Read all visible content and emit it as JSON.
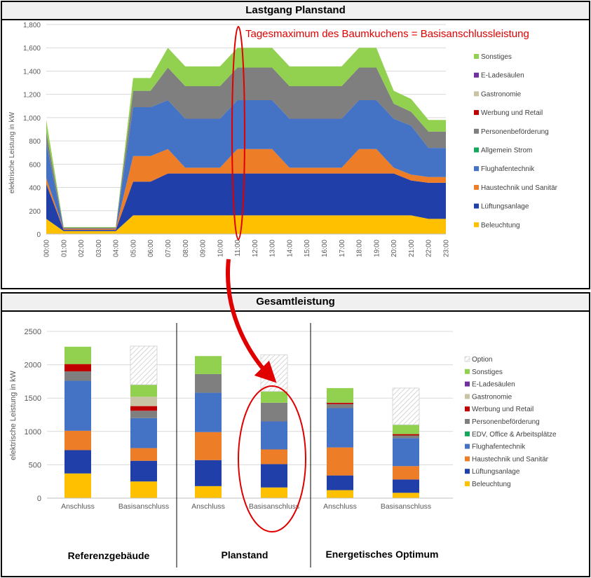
{
  "colors": {
    "Beleuchtung": "#ffc000",
    "Lueftung": "#203fa8",
    "Haustechnik": "#ee7d27",
    "Flughafen": "#4472c4",
    "Allgemein": "#13a85c",
    "EDV": "#13a85c",
    "Personen": "#7f7f7f",
    "Werbung": "#c00000",
    "Gastronomie": "#c8c3a4",
    "ELade": "#7030a0",
    "Sonstiges": "#92d050",
    "Option": "#cccccc",
    "annotation": "#e00000"
  },
  "top_panel": {
    "title": "Lastgang Planstand",
    "annotation": "Tagesmaximum des Baumkuchens = Basisanschlussleistung"
  },
  "bottom_panel": {
    "title": "Gesamtleistung",
    "group_labels": [
      "Referenzgebäude",
      "Planstand",
      "Energetisches Optimum"
    ]
  },
  "chart_data": [
    {
      "type": "area",
      "title": "Lastgang Planstand",
      "ylabel": "elektrische Leistung in kW",
      "ylim": [
        0,
        1800
      ],
      "yticks": [
        "0",
        "200",
        "400",
        "600",
        "800",
        "1,000",
        "1,200",
        "1,400",
        "1,600",
        "1,800"
      ],
      "x": [
        "00:00",
        "01:00",
        "02:00",
        "03:00",
        "04:00",
        "05:00",
        "06:00",
        "07:00",
        "08:00",
        "09:00",
        "10:00",
        "11:00",
        "12:00",
        "13:00",
        "14:00",
        "15:00",
        "16:00",
        "17:00",
        "18:00",
        "19:00",
        "20:00",
        "21:00",
        "22:00",
        "23:00"
      ],
      "legend_order": [
        "Sonstiges",
        "E-Ladesäulen",
        "Gastronomie",
        "Werbung und Retail",
        "Personenbeförderung",
        "Allgemein Strom",
        "Flughafentechnik",
        "Haustechnik und Sanitär",
        "Lüftungsanlage",
        "Beleuchtung"
      ],
      "series": [
        {
          "name": "Beleuchtung",
          "color_key": "Beleuchtung",
          "values": [
            130,
            25,
            25,
            25,
            25,
            160,
            160,
            160,
            160,
            160,
            160,
            160,
            160,
            160,
            160,
            160,
            160,
            160,
            160,
            160,
            160,
            160,
            130,
            130
          ]
        },
        {
          "name": "Lüftungsanlage",
          "color_key": "Lueftung",
          "values": [
            300,
            10,
            10,
            10,
            10,
            290,
            290,
            360,
            360,
            360,
            360,
            360,
            360,
            360,
            360,
            360,
            360,
            360,
            360,
            360,
            360,
            300,
            310,
            310
          ]
        },
        {
          "name": "Haustechnik und Sanitär",
          "color_key": "Haustechnik",
          "values": [
            50,
            10,
            10,
            10,
            10,
            220,
            220,
            210,
            50,
            50,
            50,
            210,
            210,
            210,
            50,
            50,
            50,
            50,
            210,
            210,
            50,
            50,
            50,
            50
          ]
        },
        {
          "name": "Flughafentechnik",
          "color_key": "Flughafen",
          "values": [
            300,
            5,
            5,
            5,
            5,
            420,
            420,
            420,
            420,
            420,
            420,
            420,
            420,
            420,
            420,
            420,
            420,
            420,
            420,
            420,
            420,
            420,
            250,
            250
          ]
        },
        {
          "name": "Allgemein Strom",
          "color_key": "Allgemein",
          "values": [
            0,
            0,
            0,
            0,
            0,
            0,
            0,
            0,
            0,
            0,
            0,
            0,
            0,
            0,
            0,
            0,
            0,
            0,
            0,
            0,
            0,
            0,
            0,
            0
          ]
        },
        {
          "name": "Personenbeförderung",
          "color_key": "Personen",
          "values": [
            100,
            5,
            5,
            5,
            5,
            140,
            140,
            280,
            280,
            280,
            280,
            280,
            280,
            280,
            280,
            280,
            280,
            280,
            280,
            280,
            130,
            120,
            140,
            140
          ]
        },
        {
          "name": "Werbung und Retail",
          "color_key": "Werbung",
          "values": [
            0,
            0,
            0,
            0,
            0,
            0,
            0,
            0,
            0,
            0,
            0,
            0,
            0,
            0,
            0,
            0,
            0,
            0,
            0,
            0,
            0,
            0,
            0,
            0
          ]
        },
        {
          "name": "Gastronomie",
          "color_key": "Gastronomie",
          "values": [
            0,
            0,
            0,
            0,
            0,
            0,
            0,
            0,
            0,
            0,
            0,
            0,
            0,
            0,
            0,
            0,
            0,
            0,
            0,
            0,
            0,
            0,
            0,
            0
          ]
        },
        {
          "name": "E-Ladesäulen",
          "color_key": "ELade",
          "values": [
            0,
            0,
            0,
            0,
            0,
            0,
            0,
            0,
            0,
            0,
            0,
            0,
            0,
            0,
            0,
            0,
            0,
            0,
            0,
            0,
            0,
            0,
            0,
            0
          ]
        },
        {
          "name": "Sonstiges",
          "color_key": "Sonstiges",
          "values": [
            100,
            5,
            5,
            5,
            5,
            110,
            110,
            170,
            170,
            170,
            170,
            170,
            170,
            170,
            170,
            170,
            170,
            170,
            170,
            170,
            110,
            110,
            100,
            100
          ]
        }
      ]
    },
    {
      "type": "bar",
      "title": "Gesamtleistung",
      "ylabel": "elektrische Leistung in kW",
      "ylim": [
        0,
        2500
      ],
      "yticks": [
        "0",
        "500",
        "1000",
        "1500",
        "2000",
        "2500"
      ],
      "categories": [
        "Anschluss",
        "Basisanschluss",
        "Anschluss",
        "Basisanschluss",
        "Anschluss",
        "Basisanschluss"
      ],
      "legend_order": [
        "Option",
        "Sonstiges",
        "E-Ladesäulen",
        "Gastronomie",
        "Werbung und Retail",
        "Personenbeförderung",
        "EDV, Office & Arbeitsplätze",
        "Flughafentechnik",
        "Haustechnik und Sanitär",
        "Lüftungsanlage",
        "Beleuchtung"
      ],
      "series": [
        {
          "name": "Beleuchtung",
          "color_key": "Beleuchtung",
          "values": [
            370,
            250,
            180,
            160,
            120,
            80
          ]
        },
        {
          "name": "Lüftungsanlage",
          "color_key": "Lueftung",
          "values": [
            350,
            310,
            390,
            350,
            220,
            200
          ]
        },
        {
          "name": "Haustechnik und Sanitär",
          "color_key": "Haustechnik",
          "values": [
            290,
            190,
            420,
            220,
            420,
            200
          ]
        },
        {
          "name": "Flughafentechnik",
          "color_key": "Flughafen",
          "values": [
            750,
            450,
            590,
            420,
            590,
            420
          ]
        },
        {
          "name": "EDV, Office & Arbeitsplätze",
          "color_key": "EDV",
          "values": [
            0,
            0,
            0,
            0,
            0,
            0
          ]
        },
        {
          "name": "Personenbeförderung",
          "color_key": "Personen",
          "values": [
            140,
            110,
            280,
            280,
            60,
            40
          ]
        },
        {
          "name": "Werbung und Retail",
          "color_key": "Werbung",
          "values": [
            110,
            70,
            0,
            0,
            20,
            20
          ]
        },
        {
          "name": "Gastronomie",
          "color_key": "Gastronomie",
          "values": [
            0,
            140,
            0,
            0,
            0,
            0
          ]
        },
        {
          "name": "E-Ladesäulen",
          "color_key": "ELade",
          "values": [
            0,
            0,
            0,
            0,
            0,
            0
          ]
        },
        {
          "name": "Sonstiges",
          "color_key": "Sonstiges",
          "values": [
            260,
            180,
            270,
            170,
            220,
            140
          ]
        },
        {
          "name": "Option",
          "color_key": "Option",
          "values": [
            0,
            580,
            0,
            550,
            0,
            550
          ]
        }
      ]
    }
  ]
}
